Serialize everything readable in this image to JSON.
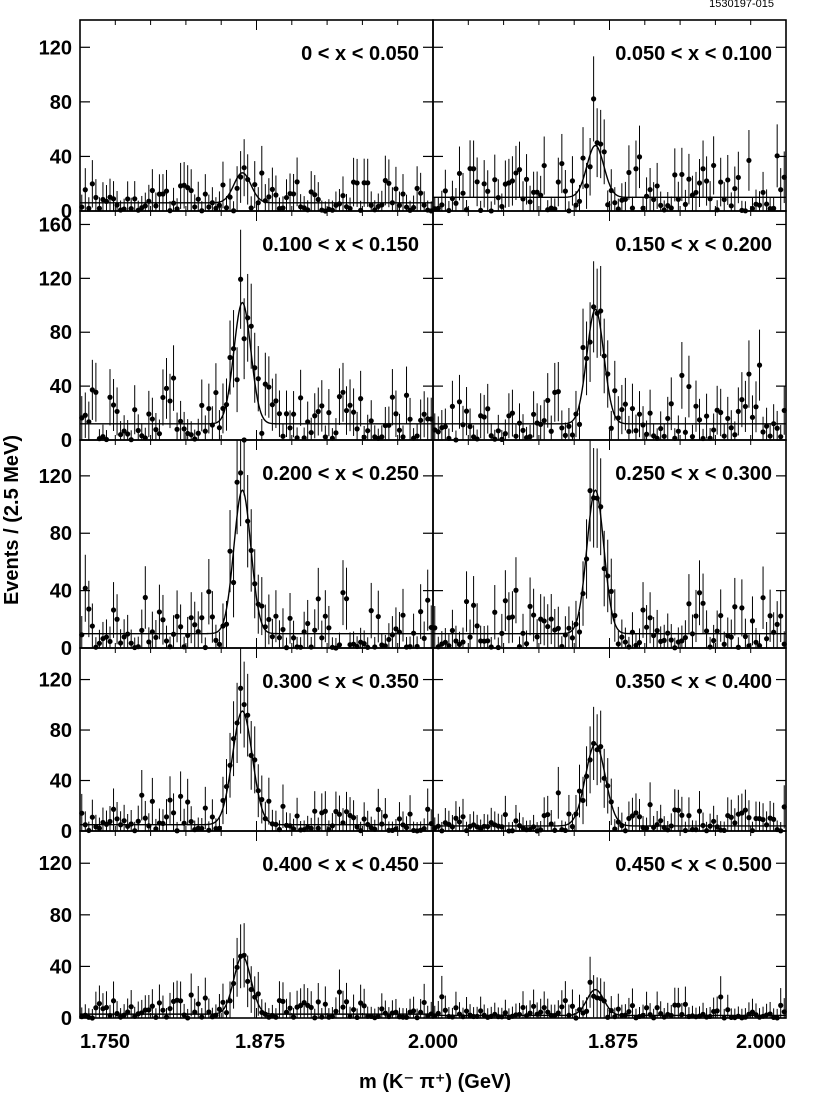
{
  "figure_id": "1530197-015",
  "chart_data": {
    "type": "scatter",
    "layout": "grid 5 rows x 2 columns, shared axes",
    "xlabel": "m (K⁻ π⁺) (GeV)",
    "ylabel": "Events / (2.5 MeV)",
    "xlim": [
      1.75,
      2.0
    ],
    "x_tick_labels": [
      "1.750",
      "1.875",
      "2.000",
      "1.875",
      "2.000"
    ],
    "marker": "filled dot with vertical error bar",
    "fit_curve": "gaussian signal plus flat background",
    "panels": [
      {
        "label": "0 < x < 0.050",
        "ylim": [
          0,
          140
        ],
        "yticks": [
          0,
          40,
          80,
          120
        ],
        "peak_mass": 1.865,
        "peak_height": 22,
        "peak_width": 0.006,
        "background": 6,
        "noise": 10
      },
      {
        "label": "0.050 < x < 0.100",
        "ylim": [
          0,
          140
        ],
        "yticks": [
          0,
          40,
          80,
          120
        ],
        "peak_mass": 1.865,
        "peak_height": 38,
        "peak_width": 0.006,
        "background": 10,
        "noise": 14
      },
      {
        "label": "0.100 < x < 0.150",
        "ylim": [
          0,
          170
        ],
        "yticks": [
          0,
          40,
          80,
          120,
          160
        ],
        "peak_mass": 1.865,
        "peak_height": 90,
        "peak_width": 0.006,
        "background": 12,
        "noise": 18
      },
      {
        "label": "0.150 < x < 0.200",
        "ylim": [
          0,
          170
        ],
        "yticks": [
          0,
          40,
          80,
          120,
          160
        ],
        "peak_mass": 1.865,
        "peak_height": 85,
        "peak_width": 0.006,
        "background": 12,
        "noise": 16
      },
      {
        "label": "0.200 < x < 0.250",
        "ylim": [
          0,
          145
        ],
        "yticks": [
          0,
          40,
          80,
          120
        ],
        "peak_mass": 1.865,
        "peak_height": 100,
        "peak_width": 0.006,
        "background": 10,
        "noise": 14
      },
      {
        "label": "0.250 < x < 0.300",
        "ylim": [
          0,
          145
        ],
        "yticks": [
          0,
          40,
          80,
          120
        ],
        "peak_mass": 1.865,
        "peak_height": 100,
        "peak_width": 0.006,
        "background": 10,
        "noise": 13
      },
      {
        "label": "0.300 < x < 0.350",
        "ylim": [
          0,
          145
        ],
        "yticks": [
          0,
          40,
          80,
          120
        ],
        "peak_mass": 1.865,
        "peak_height": 90,
        "peak_width": 0.007,
        "background": 5,
        "noise": 10
      },
      {
        "label": "0.350 < x < 0.400",
        "ylim": [
          0,
          145
        ],
        "yticks": [
          0,
          40,
          80,
          120
        ],
        "peak_mass": 1.865,
        "peak_height": 65,
        "peak_width": 0.007,
        "background": 4,
        "noise": 8
      },
      {
        "label": "0.400 < x < 0.450",
        "ylim": [
          0,
          145
        ],
        "yticks": [
          0,
          40,
          80,
          120
        ],
        "peak_mass": 1.865,
        "peak_height": 45,
        "peak_width": 0.006,
        "background": 3,
        "noise": 7
      },
      {
        "label": "0.450 < x < 0.500",
        "ylim": [
          0,
          145
        ],
        "yticks": [
          0,
          40,
          80,
          120
        ],
        "peak_mass": 1.865,
        "peak_height": 20,
        "peak_width": 0.006,
        "background": 2,
        "noise": 6
      }
    ]
  }
}
